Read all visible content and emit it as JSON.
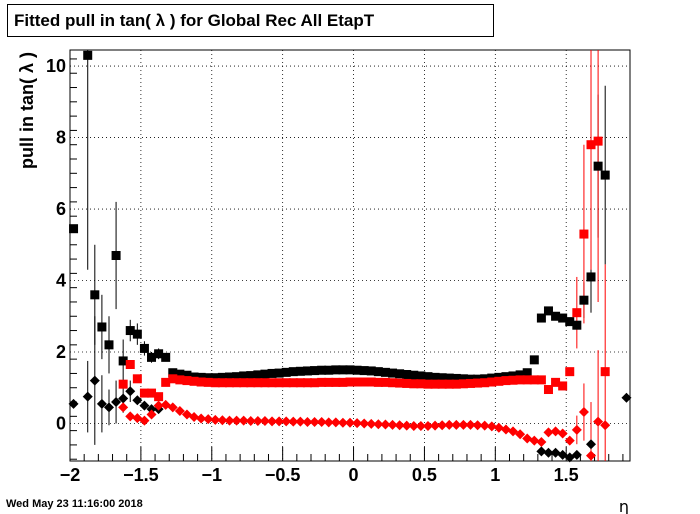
{
  "title": "Fitted pull in tan( λ ) for Global Rec All EtapT",
  "timestamp": "Wed May 23 11:16:00 2018",
  "chart_data": {
    "type": "scatter",
    "title": "Fitted pull in tan( λ ) for Global Rec All EtapT",
    "xlabel": "η",
    "ylabel": "pull in tan( λ )",
    "xlim": [
      -2,
      1.95
    ],
    "ylim": [
      -1.05,
      10.45
    ],
    "xticks": [
      -2,
      -1.5,
      -1,
      -0.5,
      0,
      0.5,
      1,
      1.5
    ],
    "xtick_labels": [
      "−2",
      "−1.5",
      "−1",
      "−0.5",
      "0",
      "0.5",
      "1",
      "1.5"
    ],
    "yticks": [
      0,
      2,
      4,
      6,
      8,
      10
    ],
    "ytick_labels": [
      "0",
      "2",
      "4",
      "6",
      "8",
      "10"
    ],
    "grid": true,
    "series": [
      {
        "marker": "square",
        "color": "#000000",
        "points": [
          [
            -1.975,
            5.45
          ],
          [
            -1.875,
            10.3
          ],
          [
            -1.825,
            3.6
          ],
          [
            -1.775,
            2.7
          ],
          [
            -1.725,
            2.2
          ],
          [
            -1.675,
            4.7
          ],
          [
            -1.625,
            1.75
          ],
          [
            -1.575,
            2.6
          ],
          [
            -1.525,
            2.5
          ],
          [
            -1.475,
            2.1
          ],
          [
            -1.425,
            1.85
          ],
          [
            -1.375,
            1.95
          ],
          [
            -1.325,
            1.85
          ],
          [
            -1.275,
            1.42
          ],
          [
            -1.225,
            1.38
          ],
          [
            -1.175,
            1.35
          ],
          [
            -1.125,
            1.3
          ],
          [
            -1.075,
            1.29
          ],
          [
            -1.025,
            1.28
          ],
          [
            -0.975,
            1.28
          ],
          [
            -0.925,
            1.29
          ],
          [
            -0.875,
            1.3
          ],
          [
            -0.825,
            1.31
          ],
          [
            -0.775,
            1.33
          ],
          [
            -0.725,
            1.34
          ],
          [
            -0.675,
            1.36
          ],
          [
            -0.625,
            1.38
          ],
          [
            -0.575,
            1.4
          ],
          [
            -0.525,
            1.41
          ],
          [
            -0.475,
            1.43
          ],
          [
            -0.425,
            1.45
          ],
          [
            -0.375,
            1.46
          ],
          [
            -0.325,
            1.47
          ],
          [
            -0.275,
            1.48
          ],
          [
            -0.225,
            1.49
          ],
          [
            -0.175,
            1.49
          ],
          [
            -0.125,
            1.5
          ],
          [
            -0.075,
            1.5
          ],
          [
            -0.025,
            1.5
          ],
          [
            0.025,
            1.49
          ],
          [
            0.075,
            1.48
          ],
          [
            0.125,
            1.47
          ],
          [
            0.175,
            1.45
          ],
          [
            0.225,
            1.43
          ],
          [
            0.275,
            1.41
          ],
          [
            0.325,
            1.39
          ],
          [
            0.375,
            1.37
          ],
          [
            0.425,
            1.35
          ],
          [
            0.475,
            1.33
          ],
          [
            0.525,
            1.31
          ],
          [
            0.575,
            1.29
          ],
          [
            0.625,
            1.28
          ],
          [
            0.675,
            1.27
          ],
          [
            0.725,
            1.26
          ],
          [
            0.775,
            1.25
          ],
          [
            0.825,
            1.24
          ],
          [
            0.875,
            1.24
          ],
          [
            0.925,
            1.25
          ],
          [
            0.975,
            1.27
          ],
          [
            1.025,
            1.29
          ],
          [
            1.075,
            1.31
          ],
          [
            1.125,
            1.33
          ],
          [
            1.175,
            1.36
          ],
          [
            1.225,
            1.42
          ],
          [
            1.275,
            1.78
          ],
          [
            1.325,
            2.95
          ],
          [
            1.375,
            3.15
          ],
          [
            1.425,
            3.0
          ],
          [
            1.475,
            2.95
          ],
          [
            1.525,
            2.85
          ],
          [
            1.575,
            2.75
          ],
          [
            1.625,
            3.45
          ],
          [
            1.675,
            4.1
          ],
          [
            1.725,
            7.2
          ],
          [
            1.775,
            6.95
          ]
        ],
        "errors": [
          [
            -1.875,
            6.0
          ],
          [
            -1.825,
            1.4
          ],
          [
            -1.775,
            0.9
          ],
          [
            -1.725,
            0.8
          ],
          [
            -1.675,
            1.5
          ],
          [
            -1.625,
            0.6
          ],
          [
            -1.575,
            0.3
          ],
          [
            -1.525,
            0.3
          ],
          [
            -1.475,
            0.2
          ],
          [
            -1.425,
            0.15
          ],
          [
            -1.375,
            0.15
          ],
          [
            -1.325,
            0.1
          ],
          [
            1.625,
            0.5
          ],
          [
            1.675,
            1.0
          ],
          [
            1.725,
            2.0
          ],
          [
            1.775,
            2.5
          ]
        ]
      },
      {
        "marker": "square",
        "color": "#ff0000",
        "points": [
          [
            -1.625,
            1.1
          ],
          [
            -1.575,
            1.65
          ],
          [
            -1.525,
            1.25
          ],
          [
            -1.475,
            0.85
          ],
          [
            -1.425,
            0.85
          ],
          [
            -1.375,
            0.75
          ],
          [
            -1.325,
            1.15
          ],
          [
            -1.275,
            1.25
          ],
          [
            -1.225,
            1.22
          ],
          [
            -1.175,
            1.2
          ],
          [
            -1.125,
            1.18
          ],
          [
            -1.075,
            1.16
          ],
          [
            -1.025,
            1.15
          ],
          [
            -0.975,
            1.14
          ],
          [
            -0.925,
            1.14
          ],
          [
            -0.875,
            1.14
          ],
          [
            -0.825,
            1.14
          ],
          [
            -0.775,
            1.14
          ],
          [
            -0.725,
            1.14
          ],
          [
            -0.675,
            1.14
          ],
          [
            -0.625,
            1.14
          ],
          [
            -0.575,
            1.14
          ],
          [
            -0.525,
            1.14
          ],
          [
            -0.475,
            1.14
          ],
          [
            -0.425,
            1.14
          ],
          [
            -0.375,
            1.14
          ],
          [
            -0.325,
            1.14
          ],
          [
            -0.275,
            1.14
          ],
          [
            -0.225,
            1.15
          ],
          [
            -0.175,
            1.15
          ],
          [
            -0.125,
            1.15
          ],
          [
            -0.075,
            1.15
          ],
          [
            -0.025,
            1.16
          ],
          [
            0.025,
            1.16
          ],
          [
            0.075,
            1.16
          ],
          [
            0.125,
            1.16
          ],
          [
            0.175,
            1.15
          ],
          [
            0.225,
            1.15
          ],
          [
            0.275,
            1.14
          ],
          [
            0.325,
            1.13
          ],
          [
            0.375,
            1.12
          ],
          [
            0.425,
            1.11
          ],
          [
            0.475,
            1.11
          ],
          [
            0.525,
            1.1
          ],
          [
            0.575,
            1.1
          ],
          [
            0.625,
            1.1
          ],
          [
            0.675,
            1.1
          ],
          [
            0.725,
            1.1
          ],
          [
            0.775,
            1.11
          ],
          [
            0.825,
            1.12
          ],
          [
            0.875,
            1.13
          ],
          [
            0.925,
            1.14
          ],
          [
            0.975,
            1.16
          ],
          [
            1.025,
            1.18
          ],
          [
            1.075,
            1.2
          ],
          [
            1.125,
            1.21
          ],
          [
            1.175,
            1.22
          ],
          [
            1.225,
            1.22
          ],
          [
            1.275,
            1.22
          ],
          [
            1.325,
            1.22
          ],
          [
            1.375,
            0.95
          ],
          [
            1.425,
            1.15
          ],
          [
            1.475,
            1.05
          ],
          [
            1.525,
            1.45
          ],
          [
            1.575,
            3.1
          ],
          [
            1.625,
            5.3
          ],
          [
            1.675,
            7.8
          ],
          [
            1.725,
            7.9
          ],
          [
            1.775,
            1.45
          ]
        ],
        "errors": [
          [
            1.575,
            1.0
          ],
          [
            1.625,
            2.5
          ],
          [
            1.675,
            3.5
          ],
          [
            1.725,
            4.5
          ],
          [
            1.775,
            3.0
          ]
        ]
      },
      {
        "marker": "diamond",
        "color": "#000000",
        "points": [
          [
            -1.975,
            0.55
          ],
          [
            -1.875,
            0.75
          ],
          [
            -1.825,
            1.2
          ],
          [
            -1.775,
            0.55
          ],
          [
            -1.725,
            0.45
          ],
          [
            -1.675,
            0.6
          ],
          [
            -1.625,
            0.7
          ],
          [
            -1.575,
            0.9
          ],
          [
            -1.525,
            0.65
          ],
          [
            -1.475,
            0.5
          ],
          [
            -1.425,
            0.4
          ],
          [
            -1.375,
            0.4
          ],
          [
            1.325,
            -0.78
          ],
          [
            1.375,
            -0.82
          ],
          [
            1.425,
            -0.82
          ],
          [
            1.475,
            -0.88
          ],
          [
            1.525,
            -0.95
          ],
          [
            1.575,
            -0.88
          ],
          [
            1.675,
            -0.58
          ],
          [
            1.925,
            0.72
          ]
        ],
        "errors": [
          [
            -1.875,
            1.0
          ],
          [
            -1.825,
            1.8
          ],
          [
            -1.775,
            0.8
          ],
          [
            -1.725,
            0.5
          ],
          [
            -1.675,
            0.6
          ],
          [
            -1.625,
            0.4
          ],
          [
            -1.575,
            0.3
          ]
        ]
      },
      {
        "marker": "diamond",
        "color": "#ff0000",
        "points": [
          [
            -1.625,
            0.45
          ],
          [
            -1.575,
            0.2
          ],
          [
            -1.525,
            0.15
          ],
          [
            -1.475,
            0.08
          ],
          [
            -1.425,
            0.25
          ],
          [
            -1.375,
            0.5
          ],
          [
            -1.325,
            0.52
          ],
          [
            -1.275,
            0.45
          ],
          [
            -1.225,
            0.35
          ],
          [
            -1.175,
            0.25
          ],
          [
            -1.125,
            0.18
          ],
          [
            -1.075,
            0.14
          ],
          [
            -1.025,
            0.12
          ],
          [
            -0.975,
            0.1
          ],
          [
            -0.925,
            0.09
          ],
          [
            -0.875,
            0.08
          ],
          [
            -0.825,
            0.08
          ],
          [
            -0.775,
            0.08
          ],
          [
            -0.725,
            0.07
          ],
          [
            -0.675,
            0.07
          ],
          [
            -0.625,
            0.07
          ],
          [
            -0.575,
            0.06
          ],
          [
            -0.525,
            0.06
          ],
          [
            -0.475,
            0.06
          ],
          [
            -0.425,
            0.05
          ],
          [
            -0.375,
            0.05
          ],
          [
            -0.325,
            0.04
          ],
          [
            -0.275,
            0.04
          ],
          [
            -0.225,
            0.04
          ],
          [
            -0.175,
            0.03
          ],
          [
            -0.125,
            0.03
          ],
          [
            -0.075,
            0.02
          ],
          [
            -0.025,
            0.02
          ],
          [
            0.025,
            0.01
          ],
          [
            0.075,
            0.0
          ],
          [
            0.125,
            -0.01
          ],
          [
            0.175,
            -0.02
          ],
          [
            0.225,
            -0.03
          ],
          [
            0.275,
            -0.04
          ],
          [
            0.325,
            -0.05
          ],
          [
            0.375,
            -0.06
          ],
          [
            0.425,
            -0.07
          ],
          [
            0.475,
            -0.07
          ],
          [
            0.525,
            -0.07
          ],
          [
            0.575,
            -0.06
          ],
          [
            0.625,
            -0.05
          ],
          [
            0.675,
            -0.04
          ],
          [
            0.725,
            -0.04
          ],
          [
            0.775,
            -0.04
          ],
          [
            0.825,
            -0.04
          ],
          [
            0.875,
            -0.05
          ],
          [
            0.925,
            -0.06
          ],
          [
            0.975,
            -0.08
          ],
          [
            1.025,
            -0.12
          ],
          [
            1.075,
            -0.17
          ],
          [
            1.125,
            -0.22
          ],
          [
            1.175,
            -0.3
          ],
          [
            1.225,
            -0.42
          ],
          [
            1.275,
            -0.48
          ],
          [
            1.325,
            -0.52
          ],
          [
            1.375,
            -0.25
          ],
          [
            1.425,
            -0.22
          ],
          [
            1.475,
            -0.28
          ],
          [
            1.525,
            -0.48
          ],
          [
            1.575,
            -0.18
          ],
          [
            1.625,
            0.32
          ],
          [
            1.675,
            -0.9
          ],
          [
            1.725,
            0.05
          ],
          [
            1.775,
            -0.05
          ]
        ],
        "errors": [
          [
            1.575,
            0.4
          ],
          [
            1.625,
            0.8
          ],
          [
            1.675,
            1.5
          ],
          [
            1.725,
            2.0
          ]
        ]
      }
    ]
  }
}
